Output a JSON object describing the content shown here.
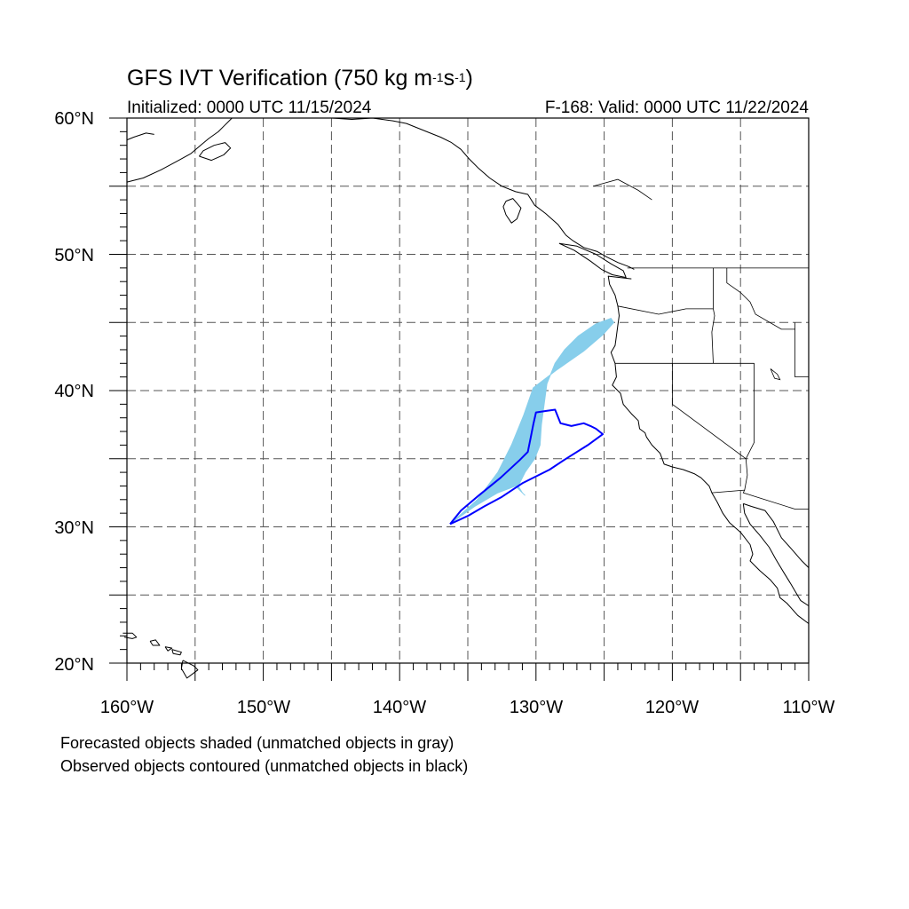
{
  "title": {
    "main": "GFS IVT Verification (750 kg m",
    "sup1": "-1",
    "mid": "s",
    "sup2": "-1",
    "end": ")"
  },
  "subtitle": {
    "left": "Initialized: 0000 UTC 11/15/2024",
    "right": "F-168: Valid: 0000 UTC 11/22/2024"
  },
  "map": {
    "lon_range": [
      -160,
      -110
    ],
    "lat_range": [
      20,
      60
    ],
    "lat_labels": [
      "60°N",
      "50°N",
      "40°N",
      "30°N",
      "20°N"
    ],
    "lon_labels": [
      "160°W",
      "150°W",
      "140°W",
      "130°W",
      "120°W",
      "110°W"
    ],
    "colors": {
      "forecast_fill": "#87ceeb",
      "observed_contour": "#0000ff",
      "coast": "#000000",
      "grid": "#555555"
    }
  },
  "forecast_object": {
    "points": [
      [
        -136.2,
        30.3
      ],
      [
        -134.3,
        32.0
      ],
      [
        -132.8,
        34.0
      ],
      [
        -131.8,
        36.0
      ],
      [
        -130.9,
        38.2
      ],
      [
        -130.2,
        40.2
      ],
      [
        -128.5,
        41.5
      ],
      [
        -126.5,
        42.9
      ],
      [
        -125.1,
        44.1
      ],
      [
        -124.3,
        45.0
      ],
      [
        -124.5,
        45.3
      ],
      [
        -125.6,
        44.9
      ],
      [
        -126.9,
        44.0
      ],
      [
        -127.9,
        43.0
      ],
      [
        -128.6,
        42.0
      ],
      [
        -129.2,
        40.5
      ],
      [
        -129.4,
        39.0
      ],
      [
        -129.6,
        37.5
      ],
      [
        -129.7,
        36.0
      ],
      [
        -130.1,
        35.0
      ],
      [
        -130.8,
        34.0
      ],
      [
        -131.3,
        33.0
      ],
      [
        -131.0,
        32.5
      ],
      [
        -130.8,
        32.3
      ],
      [
        -131.5,
        33.0
      ],
      [
        -132.8,
        32.5
      ],
      [
        -134.5,
        31.5
      ],
      [
        -136.2,
        30.3
      ]
    ]
  },
  "observed_object": {
    "points": [
      [
        -136.3,
        30.2
      ],
      [
        -135.5,
        31.2
      ],
      [
        -134.2,
        32.3
      ],
      [
        -132.6,
        33.6
      ],
      [
        -131.2,
        34.9
      ],
      [
        -130.6,
        35.5
      ],
      [
        -130.4,
        36.5
      ],
      [
        -130.2,
        37.5
      ],
      [
        -130.0,
        38.4
      ],
      [
        -129.3,
        38.5
      ],
      [
        -128.6,
        38.6
      ],
      [
        -128.2,
        37.6
      ],
      [
        -127.4,
        37.4
      ],
      [
        -126.5,
        37.6
      ],
      [
        -126.0,
        37.4
      ],
      [
        -125.6,
        37.2
      ],
      [
        -125.1,
        36.8
      ],
      [
        -126.2,
        36.0
      ],
      [
        -127.8,
        35.0
      ],
      [
        -129.0,
        34.2
      ],
      [
        -131.0,
        33.2
      ],
      [
        -132.5,
        32.2
      ],
      [
        -133.8,
        31.5
      ],
      [
        -135.0,
        30.8
      ],
      [
        -136.3,
        30.2
      ]
    ]
  },
  "notes": [
    "Forecasted objects shaded (unmatched objects in gray)",
    "Observed objects contoured (unmatched objects in black)"
  ]
}
